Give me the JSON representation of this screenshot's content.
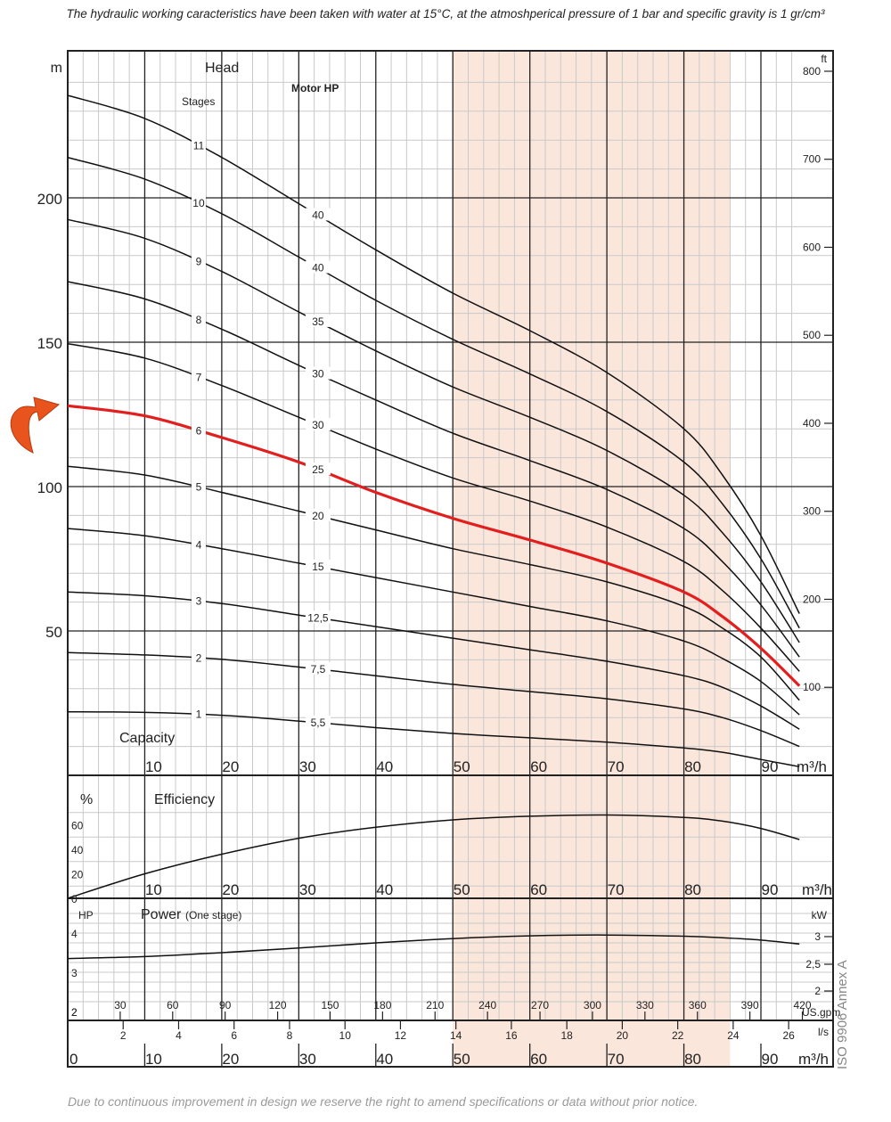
{
  "header_note": "The hydraulic working caracteristics have been taken with water at 15°C, at the atmoshperical pressure of 1 bar and specific gravity is 1 gr/cm³",
  "footer_note": "Due to continuous improvement in design we reserve the right to amend specifications or data without prior notice.",
  "side_note": "ISO 9906 Annex A",
  "colors": {
    "grid_minor": "#c9c9c9",
    "grid_major": "#222222",
    "curve": "#111111",
    "highlight_curve": "#e21f1f",
    "band": "#fbe6dc",
    "arrow": "#e9531d"
  },
  "chart_data": [
    {
      "type": "line",
      "title": "Head",
      "ylabel": "m",
      "y2label": "ft",
      "xlabel": "Capacity",
      "xunit": "m³/h",
      "stages_label": "Stages",
      "motor_label": "Motor HP",
      "xlim": [
        0,
        95
      ],
      "ylim": [
        0,
        245
      ],
      "y_ticks": [
        50,
        100,
        150,
        200
      ],
      "y2_ticks": [
        100,
        200,
        300,
        400,
        500,
        600,
        700,
        800
      ],
      "x_ticks": [
        10,
        20,
        30,
        40,
        50,
        60,
        70,
        80,
        90
      ],
      "recommended_range": [
        50,
        86
      ],
      "grid": true,
      "highlight_stage": "6",
      "series": [
        {
          "name": "1",
          "motor_hp": "5,5",
          "x": [
            0,
            10,
            20,
            30,
            40,
            50,
            60,
            70,
            80,
            85,
            90,
            95
          ],
          "y": [
            22.0,
            21.8,
            20.8,
            18.8,
            16.5,
            14.5,
            13.0,
            11.5,
            9.5,
            8.0,
            5.5,
            3.0
          ]
        },
        {
          "name": "2",
          "motor_hp": "7,5",
          "x": [
            0,
            10,
            20,
            30,
            40,
            50,
            60,
            70,
            80,
            85,
            90,
            95
          ],
          "y": [
            42.5,
            41.7,
            40.2,
            37.5,
            34.5,
            31.5,
            29.0,
            26.5,
            23.0,
            20.0,
            15.5,
            10.0
          ]
        },
        {
          "name": "3",
          "motor_hp": "12,5",
          "x": [
            0,
            10,
            20,
            30,
            40,
            50,
            60,
            70,
            80,
            85,
            90,
            95
          ],
          "y": [
            63.5,
            62.2,
            59.5,
            55.5,
            51.5,
            47.5,
            43.5,
            39.5,
            34.5,
            30.5,
            24.0,
            16.0
          ]
        },
        {
          "name": "4",
          "motor_hp": "15",
          "x": [
            0,
            10,
            20,
            30,
            40,
            50,
            60,
            70,
            80,
            85,
            90,
            95
          ],
          "y": [
            85.5,
            83.0,
            78.5,
            73.5,
            68.5,
            63.5,
            58.5,
            53.5,
            46.5,
            40.5,
            32.5,
            21.0
          ]
        },
        {
          "name": "5",
          "motor_hp": "20",
          "x": [
            0,
            10,
            20,
            30,
            40,
            50,
            60,
            70,
            80,
            85,
            90,
            95
          ],
          "y": [
            107.0,
            104.0,
            98.0,
            91.5,
            85.0,
            78.5,
            73.0,
            67.0,
            58.5,
            51.0,
            41.0,
            26.0
          ]
        },
        {
          "name": "6",
          "motor_hp": "25",
          "x": [
            0,
            10,
            20,
            30,
            40,
            50,
            60,
            70,
            80,
            85,
            90,
            95
          ],
          "y": [
            128.0,
            124.5,
            117.0,
            108.5,
            98.0,
            89.0,
            81.5,
            73.5,
            63.5,
            55.0,
            44.0,
            31.0
          ]
        },
        {
          "name": "7",
          "motor_hp": "30",
          "x": [
            0,
            10,
            20,
            30,
            40,
            50,
            60,
            70,
            80,
            85,
            90,
            95
          ],
          "y": [
            149.5,
            144.5,
            135.0,
            124.0,
            113.0,
            103.0,
            95.0,
            86.0,
            74.0,
            64.0,
            51.0,
            36.0
          ]
        },
        {
          "name": "8",
          "motor_hp": "30",
          "x": [
            0,
            10,
            20,
            30,
            40,
            50,
            60,
            70,
            80,
            85,
            90,
            95
          ],
          "y": [
            171.0,
            165.0,
            154.5,
            142.0,
            130.0,
            118.5,
            109.0,
            99.0,
            85.5,
            74.0,
            59.0,
            41.0
          ]
        },
        {
          "name": "9",
          "motor_hp": "35",
          "x": [
            0,
            10,
            20,
            30,
            40,
            50,
            60,
            70,
            80,
            85,
            90,
            95
          ],
          "y": [
            192.5,
            186.0,
            174.5,
            160.5,
            147.0,
            134.5,
            124.0,
            112.5,
            97.0,
            84.0,
            67.0,
            46.0
          ]
        },
        {
          "name": "10",
          "motor_hp": "40",
          "x": [
            0,
            10,
            20,
            30,
            40,
            50,
            60,
            70,
            80,
            85,
            90,
            95
          ],
          "y": [
            214.0,
            206.5,
            194.5,
            179.5,
            164.5,
            151.0,
            139.0,
            126.0,
            108.5,
            94.0,
            75.0,
            51.0
          ]
        },
        {
          "name": "11",
          "motor_hp": "40",
          "x": [
            0,
            10,
            20,
            30,
            40,
            50,
            60,
            70,
            80,
            85,
            90,
            95
          ],
          "y": [
            235.5,
            227.5,
            214.0,
            198.0,
            182.0,
            167.0,
            154.0,
            139.5,
            120.0,
            104.0,
            83.0,
            56.0
          ]
        }
      ]
    },
    {
      "type": "line",
      "title": "Efficiency",
      "ylabel": "%",
      "xunit": "m³/h",
      "xlim": [
        0,
        95
      ],
      "ylim": [
        0,
        80
      ],
      "y_ticks": [
        0,
        20,
        40,
        60
      ],
      "x_ticks": [
        10,
        20,
        30,
        40,
        50,
        60,
        70,
        80,
        90
      ],
      "series": [
        {
          "x": [
            0,
            10,
            20,
            30,
            40,
            50,
            60,
            70,
            80,
            85,
            90,
            95
          ],
          "y": [
            0,
            20,
            36,
            49,
            58,
            64,
            67,
            68,
            66,
            63,
            57,
            48
          ]
        }
      ]
    },
    {
      "type": "line",
      "title": "Power",
      "title_note": "(One stage)",
      "ylabel": "HP",
      "y2label": "kW",
      "xunit": "m³/h",
      "xlim": [
        0,
        95
      ],
      "ylim": [
        2,
        4.6
      ],
      "y_ticks": [
        2,
        3,
        4
      ],
      "y2_ticks": [
        "2",
        "2,5",
        "3"
      ],
      "series": [
        {
          "x": [
            0,
            10,
            20,
            30,
            40,
            50,
            60,
            70,
            80,
            85,
            90,
            95
          ],
          "y": [
            3.35,
            3.4,
            3.5,
            3.62,
            3.75,
            3.86,
            3.93,
            3.95,
            3.92,
            3.88,
            3.82,
            3.72
          ]
        }
      ],
      "usgpm_label": "US.gpm",
      "usgpm_ticks": [
        30,
        60,
        90,
        120,
        150,
        180,
        210,
        240,
        270,
        300,
        330,
        360,
        390,
        420
      ],
      "ls_label": "l/s",
      "ls_ticks": [
        2,
        4,
        6,
        8,
        10,
        12,
        14,
        16,
        18,
        20,
        22,
        24,
        26
      ],
      "m3h_ticks": [
        0,
        10,
        20,
        30,
        40,
        50,
        60,
        70,
        80,
        90
      ]
    }
  ]
}
